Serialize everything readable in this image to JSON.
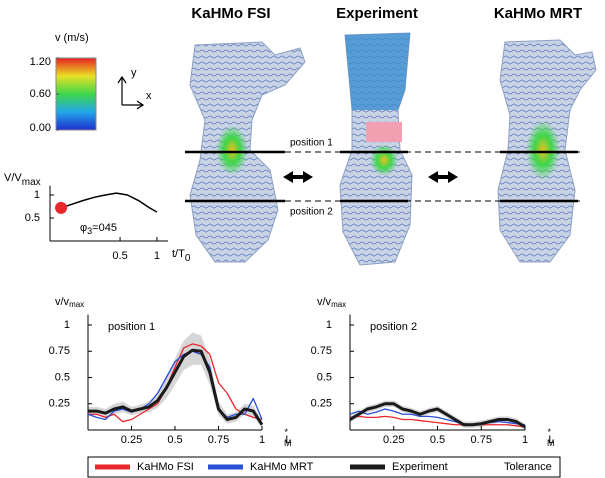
{
  "figure": {
    "panel_titles": [
      "KaHMo FSI",
      "Experiment",
      "KaHMo MRT"
    ],
    "colorbar": {
      "label": "v (m/s)",
      "lim": [
        0,
        1.2
      ],
      "ticks": [
        {
          "value": 1.2,
          "label": "1.20"
        },
        {
          "value": 0.6,
          "label": "0.60"
        },
        {
          "value": 0,
          "label": "0.00"
        }
      ]
    },
    "axis_y": "y",
    "axis_x": "x",
    "position_labels": [
      "position 1",
      "position 2"
    ]
  },
  "chart_data": [
    {
      "type": "line",
      "ylabel": "v/v",
      "ylabel_sub": "max",
      "xlabel": "L",
      "xlabel_sup": "*",
      "xlabel_sub": "M",
      "annotation": "position 1",
      "x": [
        0,
        0.05,
        0.1,
        0.15,
        0.2,
        0.25,
        0.3,
        0.35,
        0.4,
        0.45,
        0.5,
        0.55,
        0.6,
        0.65,
        0.7,
        0.75,
        0.8,
        0.85,
        0.9,
        0.95,
        1
      ],
      "xlim": [
        0,
        1
      ],
      "ylim": [
        0,
        1.1
      ],
      "xticks": [
        0.25,
        0.5,
        0.75,
        1
      ],
      "yticks": [
        0.25,
        0.5,
        0.75,
        1
      ],
      "band": {
        "name": "Tolerance",
        "color": "#d6d6d6",
        "lower": [
          0.14,
          0.14,
          0.12,
          0.15,
          0.17,
          0.14,
          0.16,
          0.17,
          0.21,
          0.3,
          0.43,
          0.57,
          0.62,
          0.62,
          0.43,
          0.14,
          0.06,
          0.08,
          0.15,
          0.13,
          0.02
        ],
        "upper": [
          0.22,
          0.22,
          0.2,
          0.25,
          0.27,
          0.22,
          0.24,
          0.27,
          0.35,
          0.5,
          0.68,
          0.85,
          0.93,
          0.9,
          0.68,
          0.27,
          0.15,
          0.17,
          0.25,
          0.23,
          0.09
        ]
      },
      "series": [
        {
          "name": "KaHMo FSI",
          "color": "#e8262c",
          "width": 1.3,
          "values": [
            0.15,
            0.15,
            0.12,
            0.15,
            0.08,
            0.1,
            0.15,
            0.2,
            0.25,
            0.4,
            0.6,
            0.78,
            0.82,
            0.8,
            0.72,
            0.45,
            0.35,
            0.2,
            0.15,
            0.12,
            0.1
          ]
        },
        {
          "name": "KaHMo MRT",
          "color": "#2a4fd8",
          "width": 1.3,
          "values": [
            0.15,
            0.12,
            0.1,
            0.18,
            0.2,
            0.17,
            0.2,
            0.25,
            0.35,
            0.5,
            0.65,
            0.72,
            0.75,
            0.72,
            0.6,
            0.2,
            0.12,
            0.15,
            0.15,
            0.3,
            0.1
          ]
        },
        {
          "name": "Experiment",
          "color": "#1a1a1a",
          "width": 3,
          "values": [
            0.18,
            0.18,
            0.16,
            0.2,
            0.22,
            0.18,
            0.2,
            0.22,
            0.28,
            0.4,
            0.55,
            0.7,
            0.76,
            0.75,
            0.55,
            0.2,
            0.1,
            0.12,
            0.2,
            0.18,
            0.05
          ]
        }
      ]
    },
    {
      "type": "line",
      "ylabel": "v/v",
      "ylabel_sub": "max",
      "xlabel": "L",
      "xlabel_sup": "*",
      "xlabel_sub": "M",
      "annotation": "position 2",
      "x": [
        0,
        0.05,
        0.1,
        0.15,
        0.2,
        0.25,
        0.3,
        0.35,
        0.4,
        0.45,
        0.5,
        0.55,
        0.6,
        0.65,
        0.7,
        0.75,
        0.8,
        0.85,
        0.9,
        0.95,
        1
      ],
      "xlim": [
        0,
        1
      ],
      "ylim": [
        0,
        1.1
      ],
      "xticks": [
        0.25,
        0.5,
        0.75,
        1
      ],
      "yticks": [
        0.25,
        0.5,
        0.75,
        1
      ],
      "band": {
        "name": "Tolerance",
        "color": "#d6d6d6",
        "lower": [
          0.07,
          0.12,
          0.17,
          0.19,
          0.22,
          0.22,
          0.17,
          0.15,
          0.12,
          0.15,
          0.17,
          0.12,
          0.07,
          0.02,
          0.02,
          0.03,
          0.05,
          0.07,
          0.07,
          0.05,
          0
        ],
        "upper": [
          0.13,
          0.18,
          0.23,
          0.25,
          0.28,
          0.28,
          0.23,
          0.21,
          0.18,
          0.21,
          0.23,
          0.18,
          0.13,
          0.08,
          0.08,
          0.09,
          0.11,
          0.13,
          0.13,
          0.11,
          0.06
        ]
      },
      "series": [
        {
          "name": "KaHMo FSI",
          "color": "#e8262c",
          "width": 1.3,
          "values": [
            0.12,
            0.13,
            0.12,
            0.12,
            0.13,
            0.12,
            0.1,
            0.1,
            0.09,
            0.08,
            0.07,
            0.06,
            0.05,
            0.05,
            0.05,
            0.05,
            0.05,
            0.05,
            0.05,
            0.04,
            0.03
          ]
        },
        {
          "name": "KaHMo MRT",
          "color": "#2a4fd8",
          "width": 1.3,
          "values": [
            0.15,
            0.18,
            0.15,
            0.17,
            0.2,
            0.18,
            0.15,
            0.15,
            0.13,
            0.13,
            0.12,
            0.1,
            0.08,
            0.06,
            0.05,
            0.06,
            0.07,
            0.08,
            0.07,
            0.06,
            0.05
          ]
        },
        {
          "name": "Experiment",
          "color": "#1a1a1a",
          "width": 3,
          "values": [
            0.1,
            0.15,
            0.2,
            0.22,
            0.25,
            0.25,
            0.2,
            0.18,
            0.15,
            0.18,
            0.2,
            0.15,
            0.1,
            0.05,
            0.05,
            0.06,
            0.08,
            0.1,
            0.1,
            0.08,
            0.03
          ]
        }
      ]
    },
    {
      "type": "line",
      "ylabel": "V/V",
      "ylabel_sub": "max",
      "xlabel": "t/T",
      "xlabel_sub": "0",
      "phase": "φ",
      "phase_sub": "3",
      "phase_value": "=045",
      "x": [
        -0.3,
        -0.15,
        0,
        0.15,
        0.3,
        0.45,
        0.6,
        0.75,
        0.9,
        1.0
      ],
      "xlim": [
        -0.45,
        1.15
      ],
      "ylim": [
        0,
        1.2
      ],
      "xticks": [
        0.5,
        1
      ],
      "yticks": [
        0.5,
        1
      ],
      "series": [
        {
          "color": "#000",
          "width": 1.5,
          "values": [
            0.72,
            0.8,
            0.88,
            0.95,
            1.0,
            1.04,
            1.0,
            0.88,
            0.72,
            0.63
          ]
        }
      ],
      "marker": {
        "x": -0.3,
        "value": 0.72,
        "color": "#e8262c"
      }
    }
  ]
}
